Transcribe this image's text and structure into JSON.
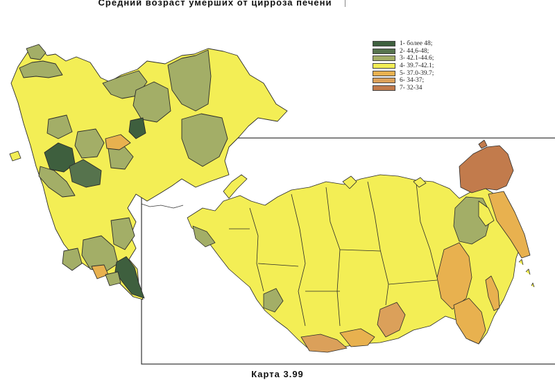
{
  "title": "Средний возраст умерших от цирроза печени",
  "caption": "Карта 3.99",
  "legend": {
    "items": [
      {
        "label": "1- более 48;",
        "color": "#3e5f3e"
      },
      {
        "label": "2- 44,6-48;",
        "color": "#56734d"
      },
      {
        "label": "3- 42.1-44.6;",
        "color": "#a3ae67"
      },
      {
        "label": "4- 39.7-42.1;",
        "color": "#f3ee55"
      },
      {
        "label": "5- 37.0-39.7;",
        "color": "#e8b14f"
      },
      {
        "label": "6- 34-37;",
        "color": "#dba05a"
      },
      {
        "label": "7- 32-34",
        "color": "#c27b4c"
      }
    ]
  },
  "colors": {
    "border": "#2a2a2a",
    "frame": "#333333",
    "background": "#ffffff"
  }
}
